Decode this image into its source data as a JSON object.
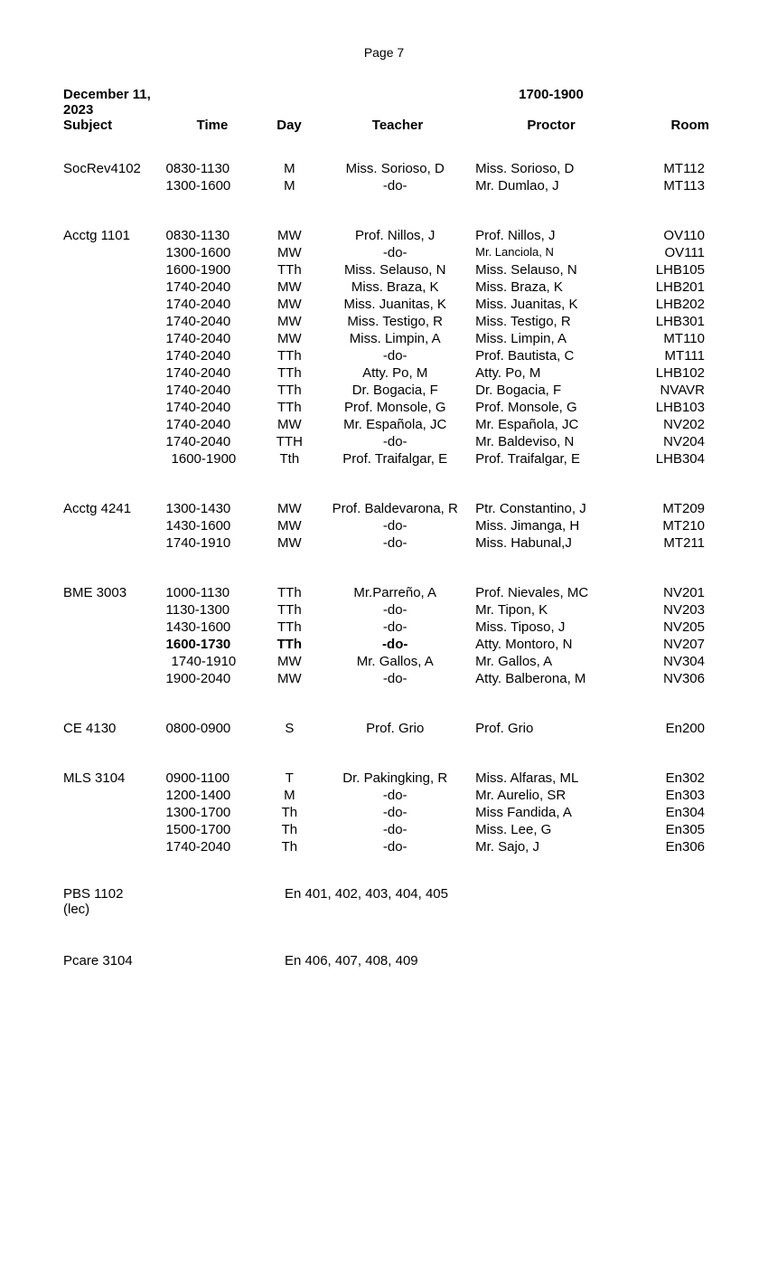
{
  "page_label": "Page 7",
  "date_label": "December 11, 2023",
  "time_block": "1700-1900",
  "columns": {
    "subject": "Subject",
    "time": "Time",
    "day": "Day",
    "teacher": "Teacher",
    "proctor": "Proctor",
    "room": "Room"
  },
  "sections": [
    {
      "subject": "SocRev4102",
      "rows": [
        {
          "time": "0830-1130",
          "day": "M",
          "teacher": "Miss. Sorioso, D",
          "proctor": "Miss. Sorioso, D",
          "room": "MT112"
        },
        {
          "time": "1300-1600",
          "day": "M",
          "teacher": "-do-",
          "proctor": "Mr. Dumlao, J",
          "room": "MT113"
        }
      ]
    },
    {
      "subject": "Acctg 1101",
      "rows": [
        {
          "time": "0830-1130",
          "day": "MW",
          "teacher": "Prof. Nillos, J",
          "proctor": "Prof. Nillos, J",
          "room": "OV110"
        },
        {
          "time": "1300-1600",
          "day": "MW",
          "teacher": "-do-",
          "proctor": "Mr. Lanciola, N",
          "room": "OV111",
          "proctor_small": true
        },
        {
          "time": "1600-1900",
          "day": "TTh",
          "teacher": "Miss. Selauso, N",
          "proctor": "Miss. Selauso, N",
          "room": "LHB105"
        },
        {
          "time": "1740-2040",
          "day": "MW",
          "teacher": "Miss. Braza, K",
          "proctor": "Miss. Braza, K",
          "room": "LHB201"
        },
        {
          "time": "1740-2040",
          "day": "MW",
          "teacher": "Miss. Juanitas, K",
          "proctor": "Miss. Juanitas, K",
          "room": "LHB202"
        },
        {
          "time": "1740-2040",
          "day": "MW",
          "teacher": "Miss. Testigo, R",
          "proctor": "Miss. Testigo, R",
          "room": "LHB301"
        },
        {
          "time": "1740-2040",
          "day": "MW",
          "teacher": "Miss. Limpin, A",
          "proctor": "Miss. Limpin, A",
          "room": "MT110"
        },
        {
          "time": "1740-2040",
          "day": "TTh",
          "teacher": "-do-",
          "proctor": "Prof. Bautista, C",
          "room": "MT111"
        },
        {
          "time": "1740-2040",
          "day": "TTh",
          "teacher": "Atty. Po, M",
          "proctor": "Atty. Po, M",
          "room": "LHB102"
        },
        {
          "time": "1740-2040",
          "day": "TTh",
          "teacher": "Dr. Bogacia, F",
          "proctor": "Dr. Bogacia, F",
          "room": "NVAVR"
        },
        {
          "time": "1740-2040",
          "day": "TTh",
          "teacher": "Prof. Monsole, G",
          "proctor": "Prof. Monsole, G",
          "room": "LHB103"
        },
        {
          "time": "1740-2040",
          "day": "MW",
          "teacher": "Mr. Española, JC",
          "proctor": "Mr. Española, JC",
          "room": "NV202"
        },
        {
          "time": "1740-2040",
          "day": "TTH",
          "teacher": "-do-",
          "proctor": "Mr. Baldeviso, N",
          "room": "NV204"
        },
        {
          "time": "1600-1900",
          "day": "Tth",
          "teacher": "Prof. Traifalgar, E",
          "proctor": "Prof. Traifalgar, E",
          "room": "LHB304",
          "time_indent": true
        }
      ]
    },
    {
      "subject": "Acctg 4241",
      "rows": [
        {
          "time": "1300-1430",
          "day": "MW",
          "teacher": "Prof. Baldevarona, R",
          "proctor": "Ptr. Constantino, J",
          "room": "MT209"
        },
        {
          "time": "1430-1600",
          "day": "MW",
          "teacher": "-do-",
          "proctor": "Miss. Jimanga, H",
          "room": "MT210"
        },
        {
          "time": "1740-1910",
          "day": "MW",
          "teacher": "-do-",
          "proctor": "Miss. Habunal,J",
          "room": "MT211"
        }
      ]
    },
    {
      "subject": "BME 3003",
      "rows": [
        {
          "time": "1000-1130",
          "day": "TTh",
          "teacher": "Mr.Parreño, A",
          "proctor": "Prof. Nievales, MC",
          "room": "NV201"
        },
        {
          "time": "1130-1300",
          "day": "TTh",
          "teacher": "-do-",
          "proctor": "Mr. Tipon, K",
          "room": "NV203"
        },
        {
          "time": "1430-1600",
          "day": "TTh",
          "teacher": "-do-",
          "proctor": "Miss. Tiposo, J",
          "room": "NV205"
        },
        {
          "time": "1600-1730",
          "day": "TTh",
          "teacher": "-do-",
          "proctor": "Atty. Montoro, N",
          "room": "NV207",
          "bold": true
        },
        {
          "time": "1740-1910",
          "day": "MW",
          "teacher": "Mr. Gallos, A",
          "proctor": "Mr. Gallos, A",
          "room": "NV304",
          "time_indent": true
        },
        {
          "time": "1900-2040",
          "day": "MW",
          "teacher": "-do-",
          "proctor": "Atty. Balberona, M",
          "room": "NV306"
        }
      ]
    },
    {
      "subject": "CE 4130",
      "rows": [
        {
          "time": "0800-0900",
          "day": "S",
          "teacher": "Prof. Grio",
          "proctor": "Prof. Grio",
          "room": "En200"
        }
      ]
    },
    {
      "subject": "MLS 3104",
      "rows": [
        {
          "time": "0900-1100",
          "day": "T",
          "teacher": "Dr. Pakingking, R",
          "proctor": "Miss. Alfaras, ML",
          "room": "En302"
        },
        {
          "time": "1200-1400",
          "day": "M",
          "teacher": "-do-",
          "proctor": "Mr. Aurelio, SR",
          "room": "En303"
        },
        {
          "time": "1300-1700",
          "day": "Th",
          "teacher": "-do-",
          "proctor": "Miss Fandida, A",
          "room": "En304"
        },
        {
          "time": "1500-1700",
          "day": "Th",
          "teacher": "-do-",
          "proctor": "Miss. Lee, G",
          "room": "En305"
        },
        {
          "time": "1740-2040",
          "day": "Th",
          "teacher": "-do-",
          "proctor": "Mr. Sajo, J",
          "room": "En306"
        }
      ]
    }
  ],
  "free_sections": [
    {
      "subject": "PBS 1102\n(lec)",
      "text": "En 401, 402, 403, 404, 405"
    },
    {
      "subject": "Pcare 3104",
      "text": "En 406, 407, 408, 409"
    }
  ]
}
